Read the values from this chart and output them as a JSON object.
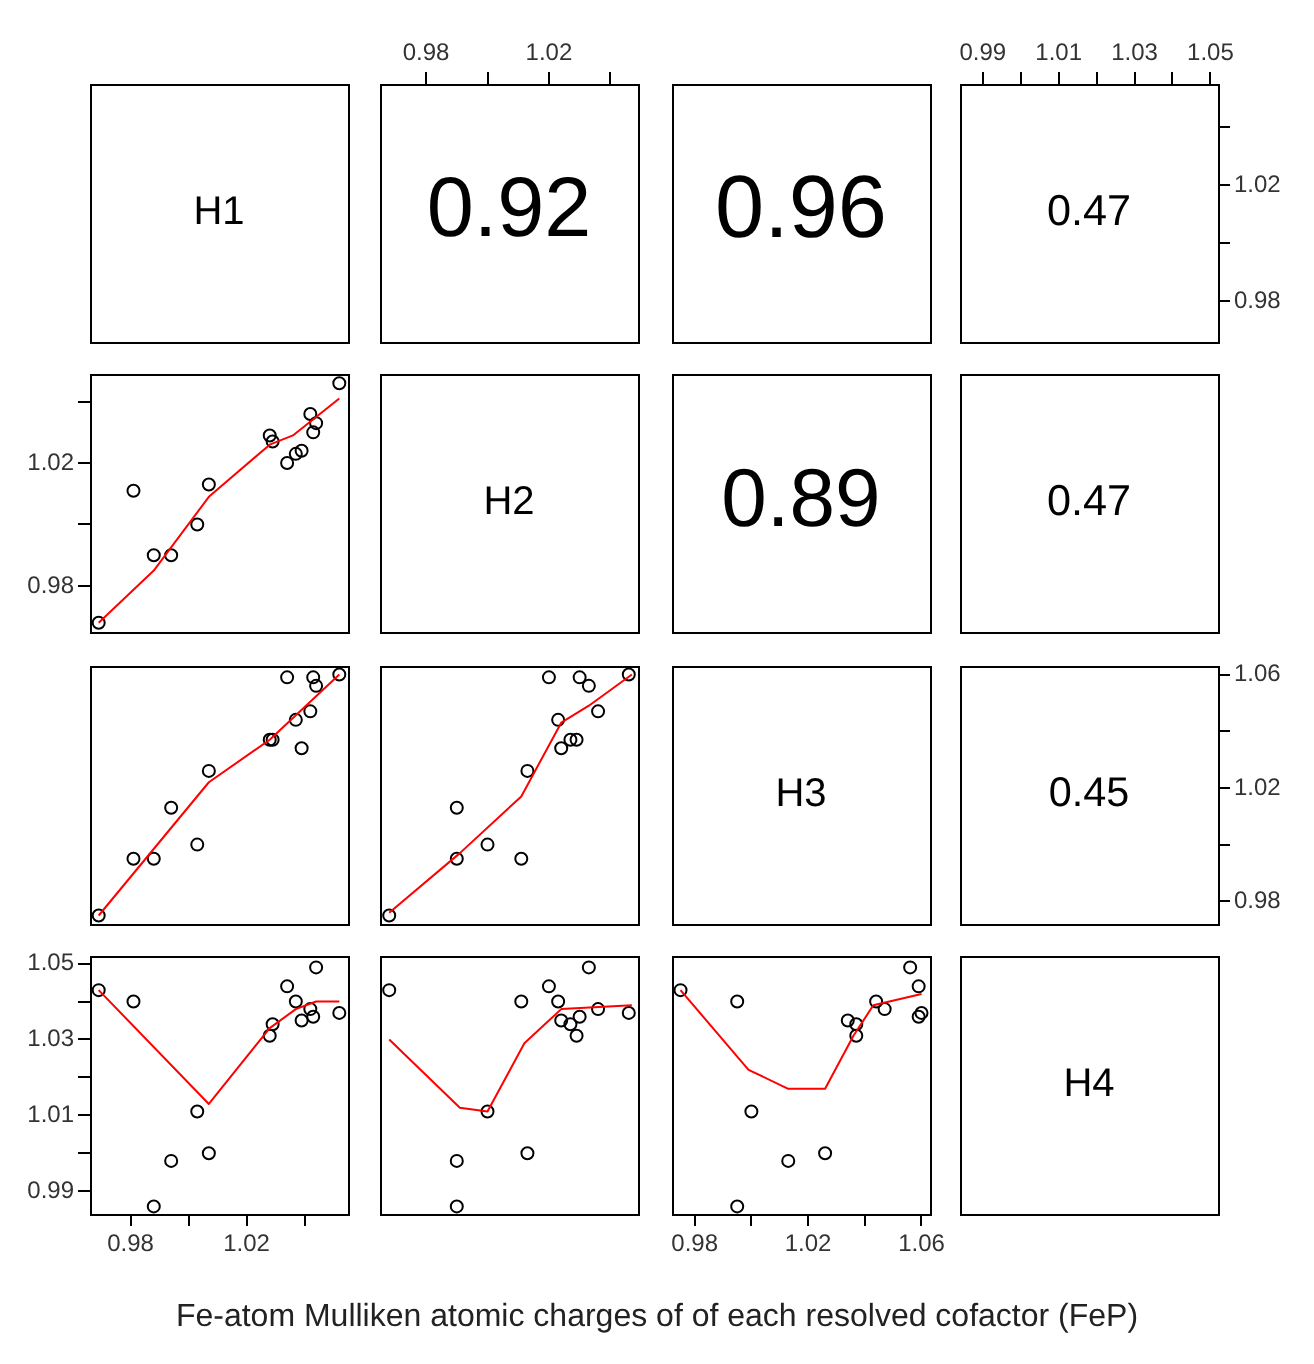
{
  "chart_data": [
    {
      "type": "other",
      "title": "H1"
    },
    {
      "type": "scatter",
      "annotations": [
        "0.92"
      ],
      "tick_labels": "x",
      "xlim": [
        0.965,
        1.049
      ],
      "ylim": [
        0.966,
        1.055
      ],
      "xticks": [
        0.98,
        {
          "value": 1.0,
          "label": null
        },
        1.02,
        {
          "value": 1.04,
          "label": null
        }
      ]
    },
    {
      "type": "other",
      "annotations": [
        "0.96"
      ]
    },
    {
      "type": "scatter",
      "annotations": [
        "0.47"
      ],
      "xlim": [
        0.984,
        1.052
      ],
      "xticks": [
        0.99,
        {
          "value": 1.0,
          "label": null
        },
        1.01,
        {
          "value": 1.02,
          "label": null
        },
        1.03,
        {
          "value": 1.04,
          "label": null
        },
        1.05
      ],
      "ylim": [
        0.966,
        1.055
      ],
      "yticks": [
        0.98,
        {
          "value": 1.0,
          "label": null
        },
        1.02,
        {
          "value": 1.04,
          "label": null
        }
      ]
    },
    {
      "type": "scatter",
      "marker": "circle",
      "xlim": [
        0.966,
        1.055
      ],
      "ylim": [
        0.965,
        1.049
      ],
      "yticks": [
        0.98,
        {
          "value": 1.0,
          "label": null
        },
        1.02,
        {
          "value": 1.04,
          "label": null
        }
      ],
      "tick_labels": "y",
      "series": [
        {
          "color": "#000000",
          "x": [
            0.969,
            0.981,
            0.988,
            0.994,
            1.003,
            1.007,
            1.028,
            1.029,
            1.034,
            1.037,
            1.039,
            1.042,
            1.043,
            1.044,
            1.052
          ],
          "values": [
            0.968,
            1.011,
            0.99,
            0.99,
            1.0,
            1.013,
            1.029,
            1.027,
            1.02,
            1.023,
            1.024,
            1.036,
            1.03,
            1.033,
            1.046
          ]
        },
        {
          "type": "line",
          "marker": "none",
          "line_style": "solid",
          "color": "#ff0000",
          "x": [
            0.969,
            0.988,
            1.007,
            1.028,
            1.036,
            1.052
          ],
          "values": [
            0.968,
            0.985,
            1.009,
            1.026,
            1.029,
            1.041
          ]
        }
      ]
    },
    {
      "type": "other",
      "title": "H2"
    },
    {
      "type": "other",
      "annotations": [
        "0.89"
      ]
    },
    {
      "type": "other",
      "annotations": [
        "0.47"
      ]
    },
    {
      "type": "scatter",
      "marker": "circle",
      "xlim": [
        0.966,
        1.055
      ],
      "ylim": [
        0.972,
        1.063
      ],
      "tick_labels": false,
      "series": [
        {
          "color": "#000000",
          "x": [
            0.969,
            0.981,
            0.988,
            0.994,
            1.003,
            1.007,
            1.028,
            1.029,
            1.034,
            1.037,
            1.039,
            1.042,
            1.043,
            1.044,
            1.052
          ],
          "values": [
            0.975,
            0.995,
            0.995,
            1.013,
            1.0,
            1.026,
            1.037,
            1.037,
            1.059,
            1.044,
            1.034,
            1.047,
            1.059,
            1.056,
            1.06
          ]
        },
        {
          "type": "line",
          "marker": "none",
          "line_style": "solid",
          "color": "#ff0000",
          "x": [
            0.969,
            1.007,
            1.028,
            1.052
          ],
          "values": [
            0.975,
            1.022,
            1.037,
            1.06
          ]
        }
      ]
    },
    {
      "type": "scatter",
      "marker": "circle",
      "xlim": [
        0.965,
        1.049
      ],
      "ylim": [
        0.972,
        1.063
      ],
      "tick_labels": false,
      "series": [
        {
          "color": "#000000",
          "x": [
            0.968,
            1.011,
            0.99,
            0.99,
            1.0,
            1.013,
            1.029,
            1.027,
            1.02,
            1.023,
            1.024,
            1.036,
            1.03,
            1.033,
            1.046
          ],
          "values": [
            0.975,
            0.995,
            0.995,
            1.013,
            1.0,
            1.026,
            1.037,
            1.037,
            1.059,
            1.044,
            1.034,
            1.047,
            1.059,
            1.056,
            1.06
          ]
        },
        {
          "type": "line",
          "marker": "none",
          "line_style": "solid",
          "color": "#ff0000",
          "x": [
            0.968,
            0.991,
            1.011,
            1.024,
            1.033,
            1.047
          ],
          "values": [
            0.976,
            0.997,
            1.017,
            1.043,
            1.049,
            1.06
          ]
        }
      ]
    },
    {
      "type": "other",
      "title": "H3"
    },
    {
      "type": "scatter",
      "annotations": [
        "0.45"
      ],
      "tick_labels": "y",
      "xlim": [
        0.984,
        1.052
      ],
      "ylim": [
        0.972,
        1.063
      ],
      "yticks": [
        0.98,
        {
          "value": 1.0,
          "label": null
        },
        1.02,
        {
          "value": 1.04,
          "label": null
        },
        1.06
      ]
    },
    {
      "type": "scatter",
      "marker": "circle",
      "xlim": [
        0.966,
        1.055
      ],
      "ylim": [
        0.984,
        1.052
      ],
      "xticks": [
        0.98,
        {
          "value": 1.0,
          "label": null
        },
        1.02,
        {
          "value": 1.04,
          "label": null
        }
      ],
      "yticks": [
        0.99,
        {
          "value": 1.0,
          "label": null
        },
        1.01,
        {
          "value": 1.02,
          "label": null
        },
        1.03,
        {
          "value": 1.04,
          "label": null
        },
        1.05
      ],
      "series": [
        {
          "color": "#000000",
          "x": [
            0.969,
            0.981,
            0.988,
            0.994,
            1.003,
            1.007,
            1.028,
            1.029,
            1.034,
            1.037,
            1.039,
            1.042,
            1.043,
            1.044,
            1.052
          ],
          "values": [
            1.043,
            1.04,
            0.986,
            0.998,
            1.011,
            1.0,
            1.031,
            1.034,
            1.044,
            1.04,
            1.035,
            1.038,
            1.036,
            1.049,
            1.037
          ]
        },
        {
          "type": "line",
          "marker": "none",
          "line_style": "solid",
          "color": "#ff0000",
          "x": [
            0.969,
            1.007,
            1.028,
            1.037,
            1.044,
            1.052
          ],
          "values": [
            1.043,
            1.013,
            1.033,
            1.038,
            1.04,
            1.04
          ]
        }
      ]
    },
    {
      "type": "scatter",
      "marker": "circle",
      "xlim": [
        0.965,
        1.049
      ],
      "ylim": [
        0.984,
        1.052
      ],
      "tick_labels": false,
      "series": [
        {
          "color": "#000000",
          "x": [
            0.968,
            1.011,
            0.99,
            0.99,
            1.0,
            1.013,
            1.029,
            1.027,
            1.02,
            1.023,
            1.024,
            1.036,
            1.03,
            1.033,
            1.046
          ],
          "values": [
            1.043,
            1.04,
            0.986,
            0.998,
            1.011,
            1.0,
            1.031,
            1.034,
            1.044,
            1.04,
            1.035,
            1.038,
            1.036,
            1.049,
            1.037
          ]
        },
        {
          "type": "line",
          "marker": "none",
          "line_style": "solid",
          "color": "#ff0000",
          "x": [
            0.968,
            0.991,
            1.0,
            1.012,
            1.024,
            1.047
          ],
          "values": [
            1.03,
            1.012,
            1.011,
            1.029,
            1.038,
            1.039
          ]
        }
      ]
    },
    {
      "type": "scatter",
      "marker": "circle",
      "xlim": [
        0.972,
        1.063
      ],
      "ylim": [
        0.984,
        1.052
      ],
      "xticks": [
        0.98,
        {
          "value": 1.0,
          "label": null
        },
        1.02,
        {
          "value": 1.04,
          "label": null
        },
        1.06
      ],
      "tick_labels": "x",
      "series": [
        {
          "color": "#000000",
          "x": [
            0.975,
            0.995,
            0.995,
            1.013,
            1.0,
            1.026,
            1.037,
            1.037,
            1.059,
            1.044,
            1.034,
            1.047,
            1.059,
            1.056,
            1.06
          ],
          "values": [
            1.043,
            1.04,
            0.986,
            0.998,
            1.011,
            1.0,
            1.031,
            1.034,
            1.044,
            1.04,
            1.035,
            1.038,
            1.036,
            1.049,
            1.037
          ]
        },
        {
          "type": "line",
          "marker": "none",
          "line_style": "solid",
          "color": "#ff0000",
          "x": [
            0.975,
            0.999,
            1.013,
            1.026,
            1.036,
            1.043,
            1.06
          ],
          "values": [
            1.043,
            1.022,
            1.017,
            1.017,
            1.031,
            1.039,
            1.042
          ]
        }
      ]
    },
    {
      "type": "other",
      "title": "H4"
    },
    {
      "type": "other",
      "annotations": [
        "Fe-atom Mulliken atomic charges of of each resolved cofactor (FeP)"
      ]
    }
  ]
}
